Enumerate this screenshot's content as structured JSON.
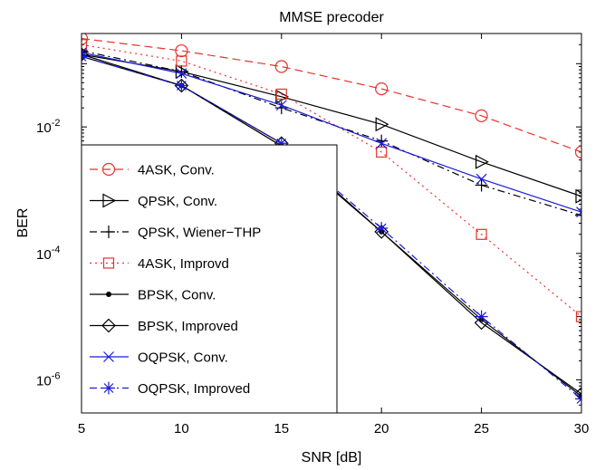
{
  "chart_data": {
    "type": "line",
    "title": "MMSE precoder",
    "xlabel": "SNR [dB]",
    "ylabel": "BER",
    "x": [
      5,
      10,
      15,
      20,
      25,
      30
    ],
    "xlim": [
      5,
      30
    ],
    "ylim": [
      3e-07,
      0.3
    ],
    "yscale": "log",
    "x_tick_labels": [
      "5",
      "10",
      "15",
      "20",
      "25",
      "30"
    ],
    "y_ticks": [
      {
        "value": 0.01,
        "base": "10",
        "exp": "-2"
      },
      {
        "value": 0.0001,
        "base": "10",
        "exp": "-4"
      },
      {
        "value": 1e-06,
        "base": "10",
        "exp": "-6"
      }
    ],
    "grid": false,
    "legend_position": "bottom-left",
    "series": [
      {
        "name": "4ASK, Conv.",
        "color": "#e8322c",
        "dash": "dashed",
        "marker": "circle",
        "values": [
          0.25,
          0.16,
          0.09,
          0.04,
          0.015,
          0.004
        ]
      },
      {
        "name": "QPSK, Conv.",
        "color": "#000000",
        "dash": "solid",
        "marker": "triangle-right",
        "values": [
          0.14,
          0.075,
          0.03,
          0.011,
          0.0028,
          0.0008
        ]
      },
      {
        "name": "QPSK, Wiener−THP",
        "color": "#000000",
        "dash": "dashdot",
        "marker": "plus",
        "values": [
          0.16,
          0.075,
          0.02,
          0.006,
          0.0012,
          0.0004
        ]
      },
      {
        "name": "4ASK, Improvd",
        "color": "#e8322c",
        "dash": "dotted",
        "marker": "square",
        "values": [
          0.2,
          0.11,
          0.033,
          0.004,
          0.0002,
          1e-05
        ]
      },
      {
        "name": "BPSK, Conv.",
        "color": "#000000",
        "dash": "solid",
        "marker": "dot",
        "values": [
          0.13,
          0.045,
          0.005,
          0.00022,
          9e-06,
          5.5e-07
        ]
      },
      {
        "name": "BPSK, Improved",
        "color": "#000000",
        "dash": "solid",
        "marker": "diamond",
        "values": [
          0.14,
          0.045,
          0.0055,
          0.00022,
          8e-06,
          6e-07
        ]
      },
      {
        "name": "OQPSK, Conv.",
        "color": "#1a1adc",
        "dash": "solid",
        "marker": "x",
        "values": [
          0.15,
          0.07,
          0.022,
          0.0055,
          0.0015,
          0.00045
        ]
      },
      {
        "name": "OQPSK, Improved",
        "color": "#1a1adc",
        "dash": "dashdot",
        "marker": "asterisk",
        "values": [
          0.13,
          0.045,
          0.0055,
          0.00025,
          1e-05,
          5e-07
        ]
      }
    ]
  }
}
